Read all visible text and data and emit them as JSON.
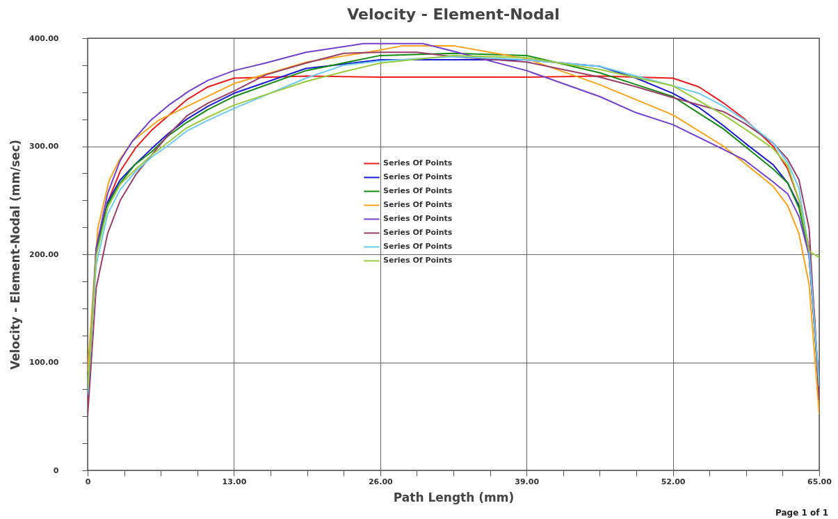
{
  "chart_data": {
    "type": "line",
    "title": "Velocity - Element-Nodal",
    "xlabel": "Path Length (mm)",
    "ylabel": "Velocity - Element-Nodal (mm/sec)",
    "annotations": [
      "Page 1 of 1"
    ],
    "xlim": [
      0,
      65
    ],
    "ylim": [
      0,
      400
    ],
    "xticks": [
      0,
      {
        "value": 3.25,
        "label": null
      },
      {
        "value": 6.5,
        "label": null
      },
      {
        "value": 9.75,
        "label": null
      },
      {
        "value": 13,
        "label": "13.00"
      },
      {
        "value": 16.25,
        "label": null
      },
      {
        "value": 19.5,
        "label": null
      },
      {
        "value": 22.75,
        "label": null
      },
      {
        "value": 26,
        "label": "26.00"
      },
      {
        "value": 29.25,
        "label": null
      },
      {
        "value": 32.5,
        "label": null
      },
      {
        "value": 35.75,
        "label": null
      },
      {
        "value": 39,
        "label": "39.00"
      },
      {
        "value": 42.25,
        "label": null
      },
      {
        "value": 45.5,
        "label": null
      },
      {
        "value": 48.75,
        "label": null
      },
      {
        "value": 52,
        "label": "52.00"
      },
      {
        "value": 55.25,
        "label": null
      },
      {
        "value": 58.5,
        "label": null
      },
      {
        "value": 61.75,
        "label": null
      },
      {
        "value": 65,
        "label": "65.00"
      }
    ],
    "yticks": [
      0,
      {
        "value": 25,
        "label": null
      },
      {
        "value": 50,
        "label": null
      },
      {
        "value": 75,
        "label": null
      },
      {
        "value": 100,
        "label": "100.00"
      },
      {
        "value": 125,
        "label": null
      },
      {
        "value": 150,
        "label": null
      },
      {
        "value": 175,
        "label": null
      },
      {
        "value": 200,
        "label": "200.00"
      },
      {
        "value": 225,
        "label": null
      },
      {
        "value": 250,
        "label": null
      },
      {
        "value": 275,
        "label": null
      },
      {
        "value": 300,
        "label": "300.00"
      },
      {
        "value": 325,
        "label": null
      },
      {
        "value": 350,
        "label": null
      },
      {
        "value": 375,
        "label": null
      },
      {
        "value": 400,
        "label": "400.00"
      }
    ],
    "grid": true,
    "legend": "center",
    "marker": "none",
    "line_style": "solid",
    "series": [
      {
        "name": "Series Of Points",
        "color": "#ee1c1c",
        "x": [
          0,
          0.76,
          1.77,
          2.9,
          4.3,
          5.7,
          8.8,
          10.7,
          13,
          19.5,
          26,
          32.5,
          39,
          45.5,
          52,
          54.3,
          56.5,
          58.4,
          60.9,
          62.2,
          63.2,
          64.1,
          64.6,
          65
        ],
        "values": [
          60,
          205,
          248,
          277,
          299,
          315,
          343,
          355,
          363,
          365,
          364,
          364,
          364,
          365,
          363,
          355,
          340,
          325,
          300,
          279,
          250,
          206,
          141,
          65
        ]
      },
      {
        "name": "Series Of Points",
        "color": "#1a1ad6",
        "x": [
          0,
          0.76,
          1.77,
          2.9,
          4.2,
          5.7,
          7.2,
          8.8,
          10.7,
          13,
          19.4,
          26,
          32.5,
          39,
          45.5,
          48.75,
          52,
          54.3,
          56.5,
          58.4,
          60.9,
          62.2,
          63.2,
          64.1,
          65
        ],
        "values": [
          70,
          203,
          248,
          269,
          283,
          298,
          312,
          325,
          337,
          349,
          372,
          380,
          380,
          380,
          374,
          363,
          349,
          336,
          319,
          303,
          283,
          266,
          245,
          199,
          75
        ]
      },
      {
        "name": "Series Of Points",
        "color": "#138a13",
        "x": [
          0,
          0.76,
          1.77,
          2.9,
          4.2,
          5.7,
          7.2,
          8.8,
          10.7,
          13,
          19.4,
          26,
          32.5,
          39,
          45.5,
          48.75,
          52,
          56.5,
          58.4,
          60.9,
          62.2,
          63.2,
          64.1,
          65
        ],
        "values": [
          70,
          201,
          246,
          266,
          283,
          295,
          310,
          322,
          334,
          346,
          370,
          384,
          386,
          384,
          368,
          357,
          346,
          316,
          300,
          279,
          266,
          243,
          203,
          70
        ]
      },
      {
        "name": "Series Of Points",
        "color": "#ffa31a",
        "x": [
          0,
          0.9,
          1.9,
          2.8,
          4,
          6.3,
          13,
          19.5,
          26,
          28,
          32.5,
          39,
          45.5,
          52,
          56.5,
          60.9,
          62.2,
          63.2,
          64.1,
          65
        ],
        "values": [
          91,
          224,
          268,
          287,
          305,
          324,
          358,
          378,
          389,
          393,
          393,
          381,
          357,
          329,
          300,
          263,
          245,
          219,
          172,
          52
        ]
      },
      {
        "name": "Series Of Points",
        "color": "#7340cf",
        "x": [
          0,
          0.76,
          1.77,
          2.9,
          4,
          5.6,
          7.2,
          9,
          10.7,
          13,
          15.8,
          19.4,
          24.5,
          29.8,
          32.5,
          39,
          45.5,
          48.75,
          52,
          56.5,
          58.4,
          60.9,
          62.2,
          63.2,
          64.1,
          65
        ],
        "values": [
          68,
          206,
          256,
          287,
          305,
          324,
          338,
          351,
          361,
          370,
          377,
          387,
          395,
          395,
          388,
          370,
          346,
          331,
          320,
          297,
          287,
          267,
          256,
          235,
          199,
          80
        ]
      },
      {
        "name": "Series Of Points",
        "color": "#9a3d68",
        "x": [
          0,
          0.76,
          1.77,
          2.9,
          4.3,
          5.7,
          7.2,
          8.8,
          10.7,
          13,
          15.8,
          19.4,
          22.75,
          26,
          29.25,
          32.5,
          39,
          45.5,
          48.75,
          52,
          56.5,
          58.4,
          60.9,
          62.2,
          63.2,
          64.1,
          65
        ],
        "values": [
          50,
          169,
          219,
          250,
          274,
          292,
          311,
          328,
          340,
          351,
          366,
          377,
          386,
          387,
          387,
          383,
          378,
          364,
          355,
          345,
          332,
          321,
          303,
          288,
          269,
          224,
          65
        ]
      },
      {
        "name": "Series Of Points",
        "color": "#6ccbf0",
        "x": [
          0,
          0.76,
          1.77,
          2.9,
          4.3,
          5.7,
          7.2,
          8.8,
          10.7,
          13,
          19.4,
          22.75,
          26,
          32.5,
          39,
          45.5,
          52,
          54.3,
          56.5,
          58.4,
          60.9,
          62.2,
          63.2,
          64.1,
          65
        ],
        "values": [
          70,
          190,
          237,
          260,
          277,
          290,
          301,
          314,
          324,
          335,
          363,
          375,
          379,
          383,
          380,
          374,
          356,
          349,
          337,
          324,
          303,
          285,
          261,
          203,
          78
        ]
      },
      {
        "name": "Series Of Points",
        "color": "#9acb3c",
        "x": [
          0,
          0.76,
          1.77,
          2.9,
          4.3,
          5.7,
          7.2,
          8.8,
          10.7,
          13,
          19.4,
          22.75,
          26,
          32.5,
          39,
          45.5,
          52,
          56.5,
          58.4,
          60.9,
          62.2,
          63.2,
          64.1,
          65
        ],
        "values": [
          75,
          198,
          243,
          265,
          279,
          292,
          304,
          317,
          327,
          338,
          360,
          369,
          377,
          384,
          382,
          371,
          356,
          329,
          316,
          298,
          282,
          250,
          203,
          197
        ]
      }
    ]
  }
}
